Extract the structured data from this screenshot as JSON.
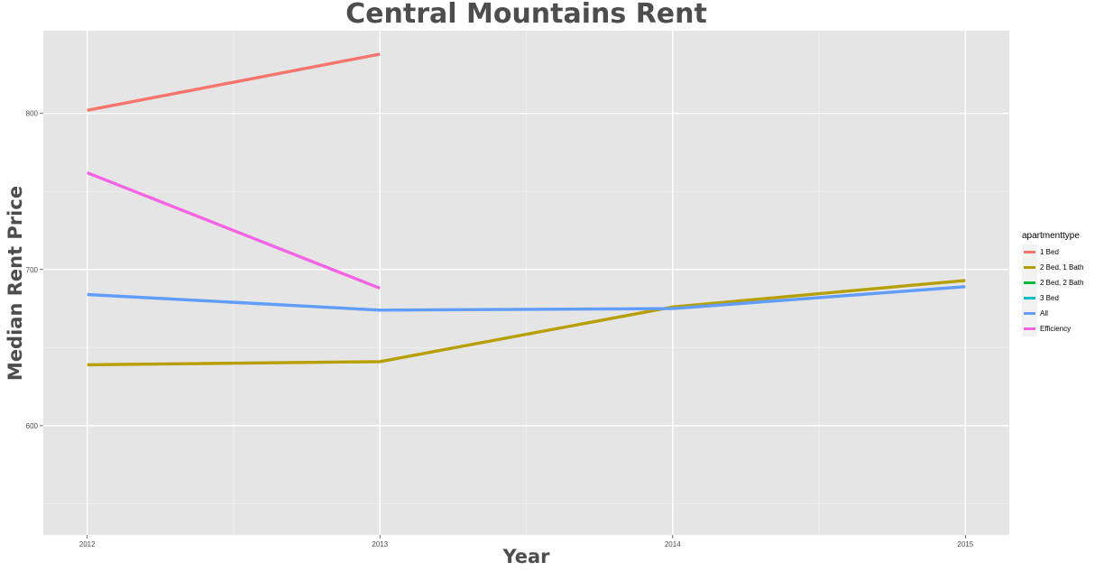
{
  "chart_data": {
    "type": "line",
    "title": "Central Mountains Rent",
    "xlabel": "Year",
    "ylabel": "Median Rent Price",
    "x": [
      2012,
      2013,
      2014,
      2015
    ],
    "x_ticks": [
      "2012",
      "2013",
      "2014",
      "2015"
    ],
    "xlim": [
      2011.85,
      2015.15
    ],
    "ylim": [
      530,
      853
    ],
    "y_ticks": [
      600,
      700,
      800
    ],
    "y_tick_labels": [
      "600",
      "700",
      "800"
    ],
    "grid": true,
    "legend": {
      "title": "apartmenttype",
      "position": "right"
    },
    "series": [
      {
        "name": "1 Bed",
        "color": "#f8766d",
        "values": [
          802,
          838,
          null,
          null
        ]
      },
      {
        "name": "2 Bed, 1 Bath",
        "color": "#b79f00",
        "values": [
          639,
          641,
          676,
          693
        ]
      },
      {
        "name": "2 Bed, 2 Bath",
        "color": "#00ba38",
        "values": [
          null,
          null,
          null,
          null
        ]
      },
      {
        "name": "3 Bed",
        "color": "#00bfc4",
        "values": [
          null,
          null,
          null,
          null
        ]
      },
      {
        "name": "All",
        "color": "#619cff",
        "values": [
          684,
          674,
          675,
          689
        ]
      },
      {
        "name": "Efficiency",
        "color": "#f564e3",
        "values": [
          762,
          688,
          null,
          null
        ]
      }
    ]
  }
}
